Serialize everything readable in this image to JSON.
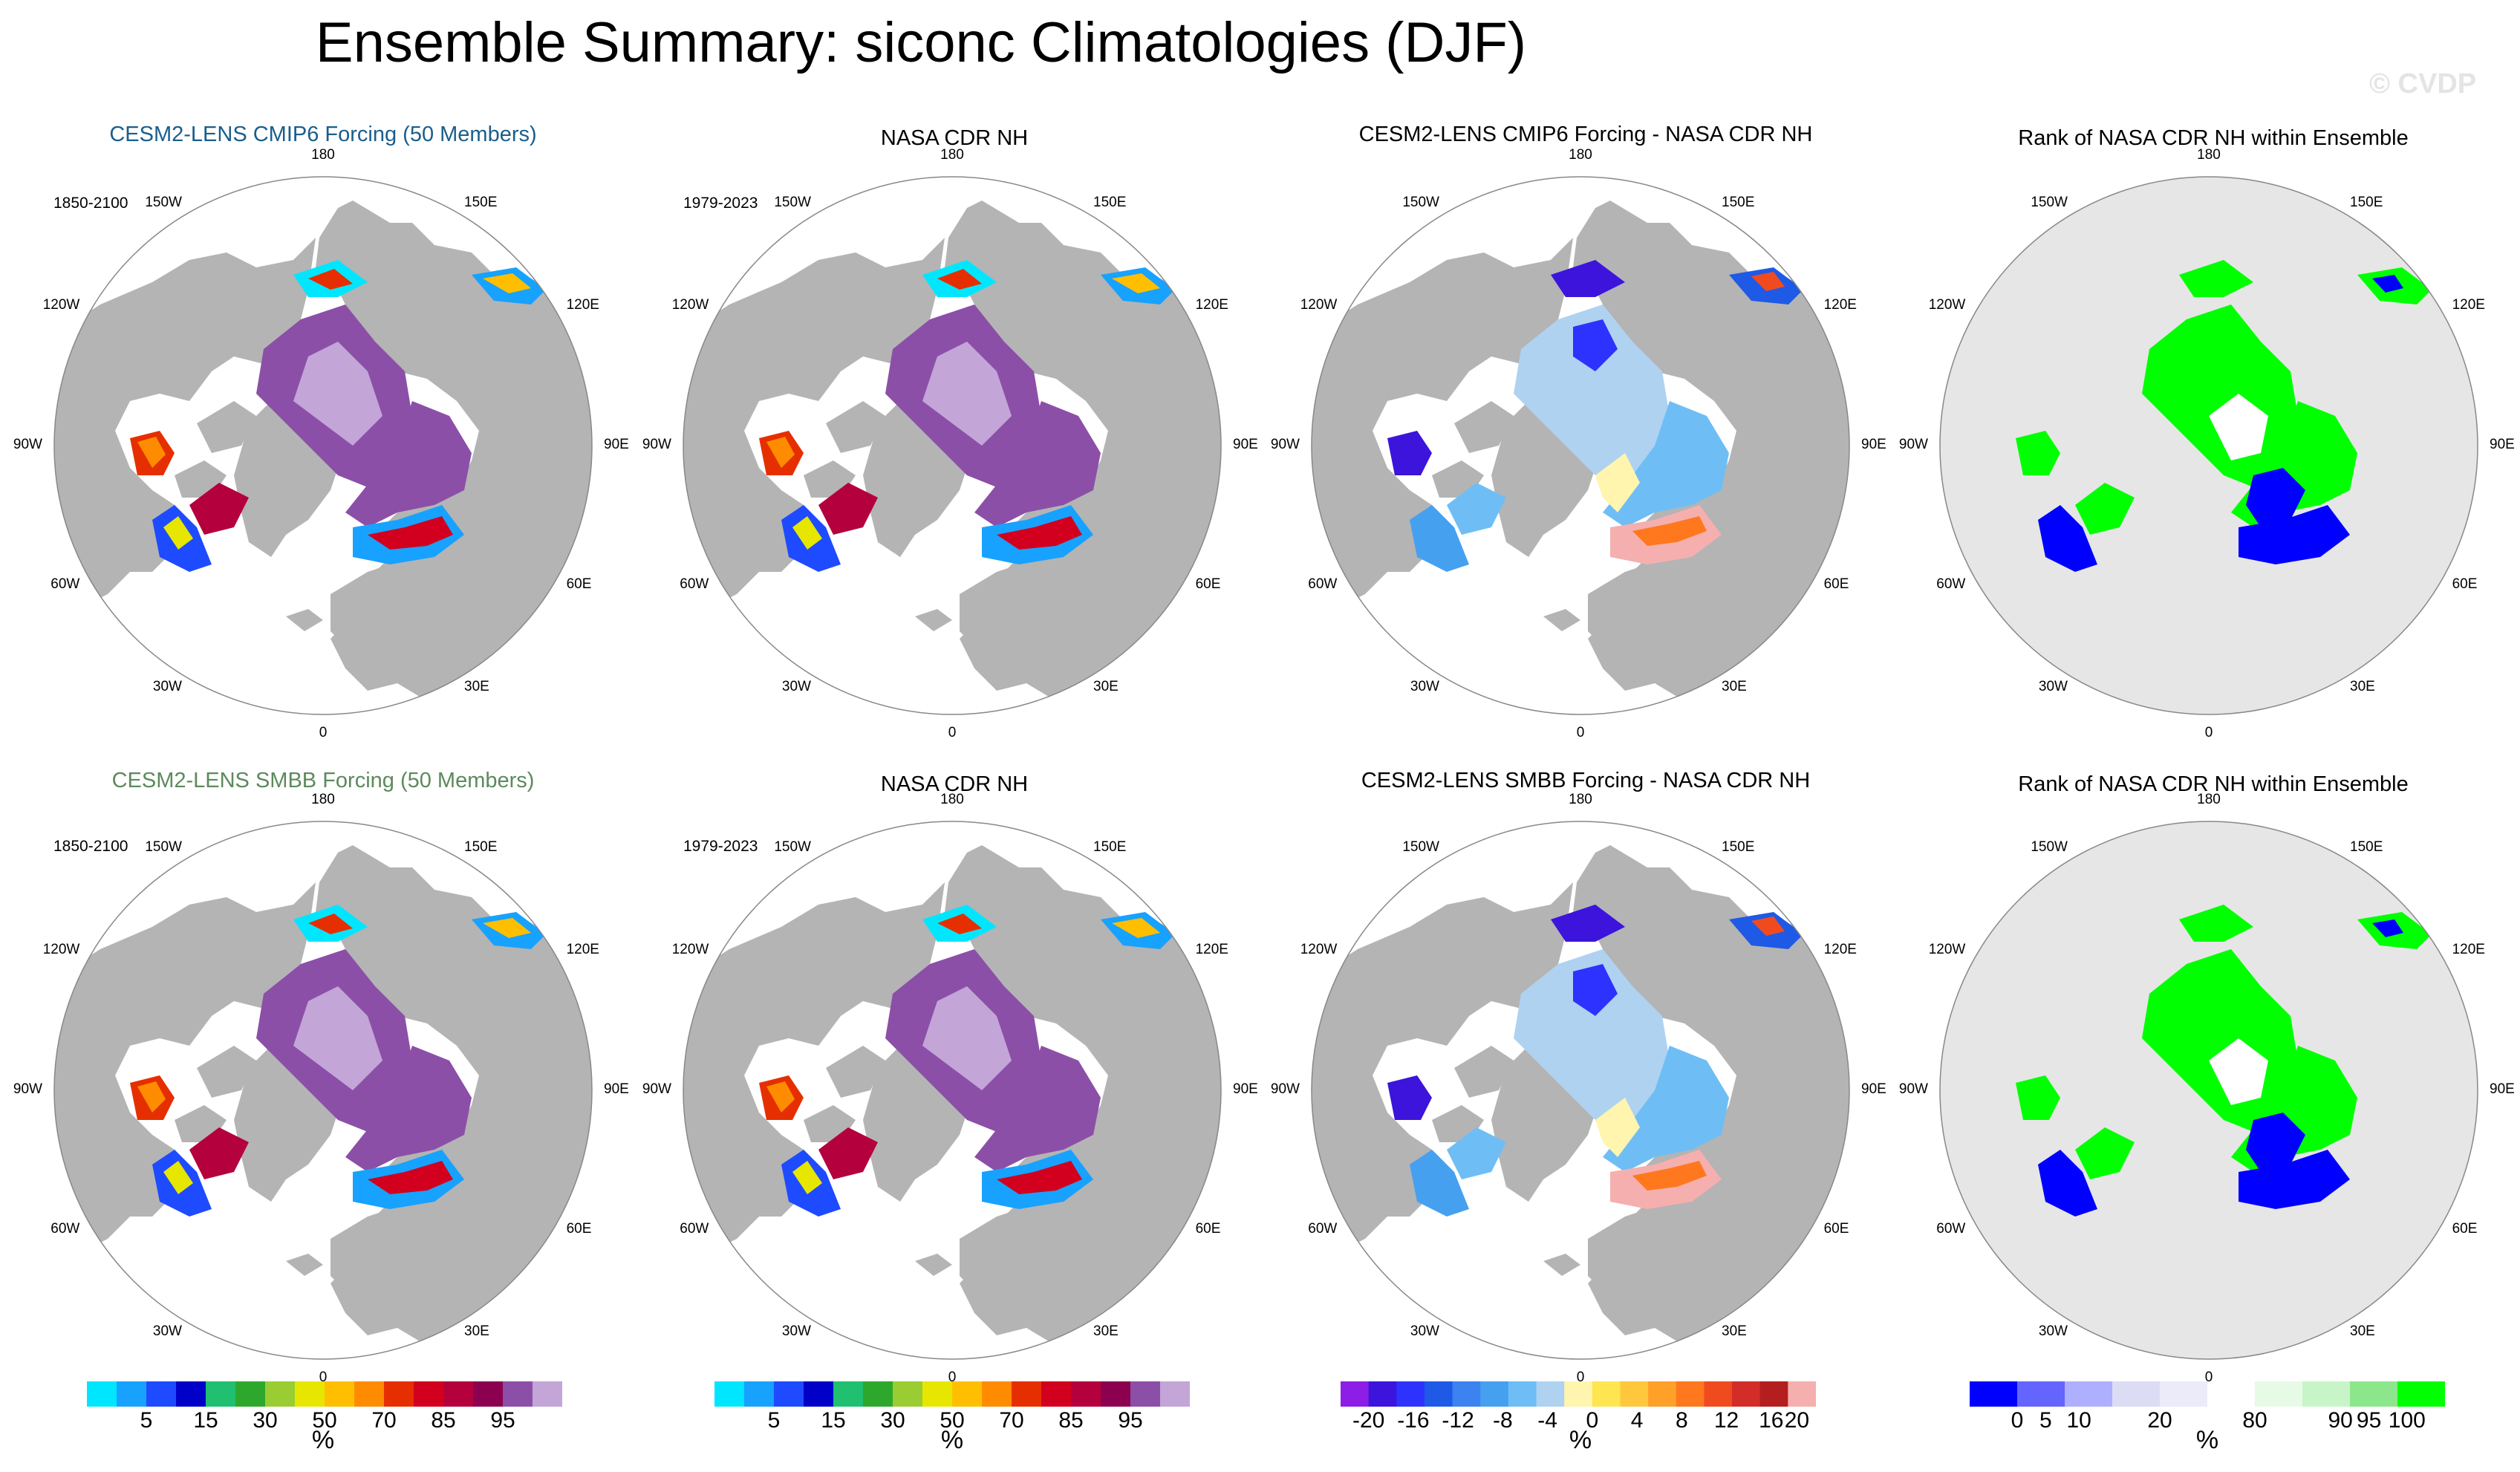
{
  "title": "Ensemble Summary: siconc Climatologies (DJF)",
  "watermark": "© CVDP",
  "colors": {
    "land": "#b4b4b4",
    "ocean": "#ffffff",
    "rank_land": "#e6e6e6",
    "title_cmip6": "#1a5e8c",
    "title_smbb": "#5c8a5c"
  },
  "panels": {
    "p11": {
      "title": "CESM2-LENS CMIP6 Forcing (50 Members)",
      "period": "1850-2100"
    },
    "p12": {
      "title": "NASA CDR NH",
      "period": "1979-2023"
    },
    "p13": {
      "title": "CESM2-LENS CMIP6 Forcing - NASA CDR NH"
    },
    "p14": {
      "title": "Rank of NASA CDR NH within Ensemble"
    },
    "p21": {
      "title": "CESM2-LENS SMBB Forcing (50 Members)",
      "period": "1850-2100"
    },
    "p22": {
      "title": "NASA CDR NH",
      "period": "1979-2023"
    },
    "p23": {
      "title": "CESM2-LENS SMBB Forcing - NASA CDR NH"
    },
    "p24": {
      "title": "Rank of NASA CDR NH within Ensemble"
    }
  },
  "longitude_labels": {
    "top": "180",
    "bottom": "0",
    "l150w": "150W",
    "l120w": "120W",
    "l90w": "90W",
    "l60w": "60W",
    "l30w": "30W",
    "l150e": "150E",
    "l120e": "120E",
    "l90e": "90E",
    "l60e": "60E",
    "l30e": "30E"
  },
  "colorbars": {
    "siconc": {
      "colors": [
        "#00e6ff",
        "#17a2ff",
        "#1e4bff",
        "#0000c8",
        "#20c070",
        "#2da82d",
        "#9acd32",
        "#e6e600",
        "#ffbf00",
        "#ff8c00",
        "#e62f00",
        "#d2001e",
        "#b4003c",
        "#8c0050",
        "#8c4fa8",
        "#c3a5d8"
      ],
      "labels": [
        "5",
        "15",
        "30",
        "50",
        "70",
        "85",
        "95"
      ],
      "unit": "%"
    },
    "diff": {
      "colors": [
        "#8c1ee6",
        "#3c14dc",
        "#2d32ff",
        "#1e5ae6",
        "#3c82f0",
        "#46a0f0",
        "#6ebef5",
        "#afd2f0",
        "#fff5af",
        "#ffe650",
        "#ffc83c",
        "#ffa028",
        "#ff781e",
        "#f04b1e",
        "#d22d28",
        "#b41e1e",
        "#f5afaf"
      ],
      "labels": [
        "-20",
        "-16",
        "-12",
        "-8",
        "-4",
        "0",
        "4",
        "8",
        "12",
        "16",
        "20"
      ],
      "unit": "%"
    },
    "rank": {
      "colors": [
        "#0000ff",
        "#6464ff",
        "#afafff",
        "#dcdcf5",
        "#ebebfa",
        "#ffffff",
        "#e6fae6",
        "#c8f5c8",
        "#8ce68c",
        "#00ff00"
      ],
      "labels": [
        "0",
        "5",
        "10",
        "20",
        "80",
        "90",
        "95",
        "100"
      ],
      "unit": "%"
    }
  }
}
